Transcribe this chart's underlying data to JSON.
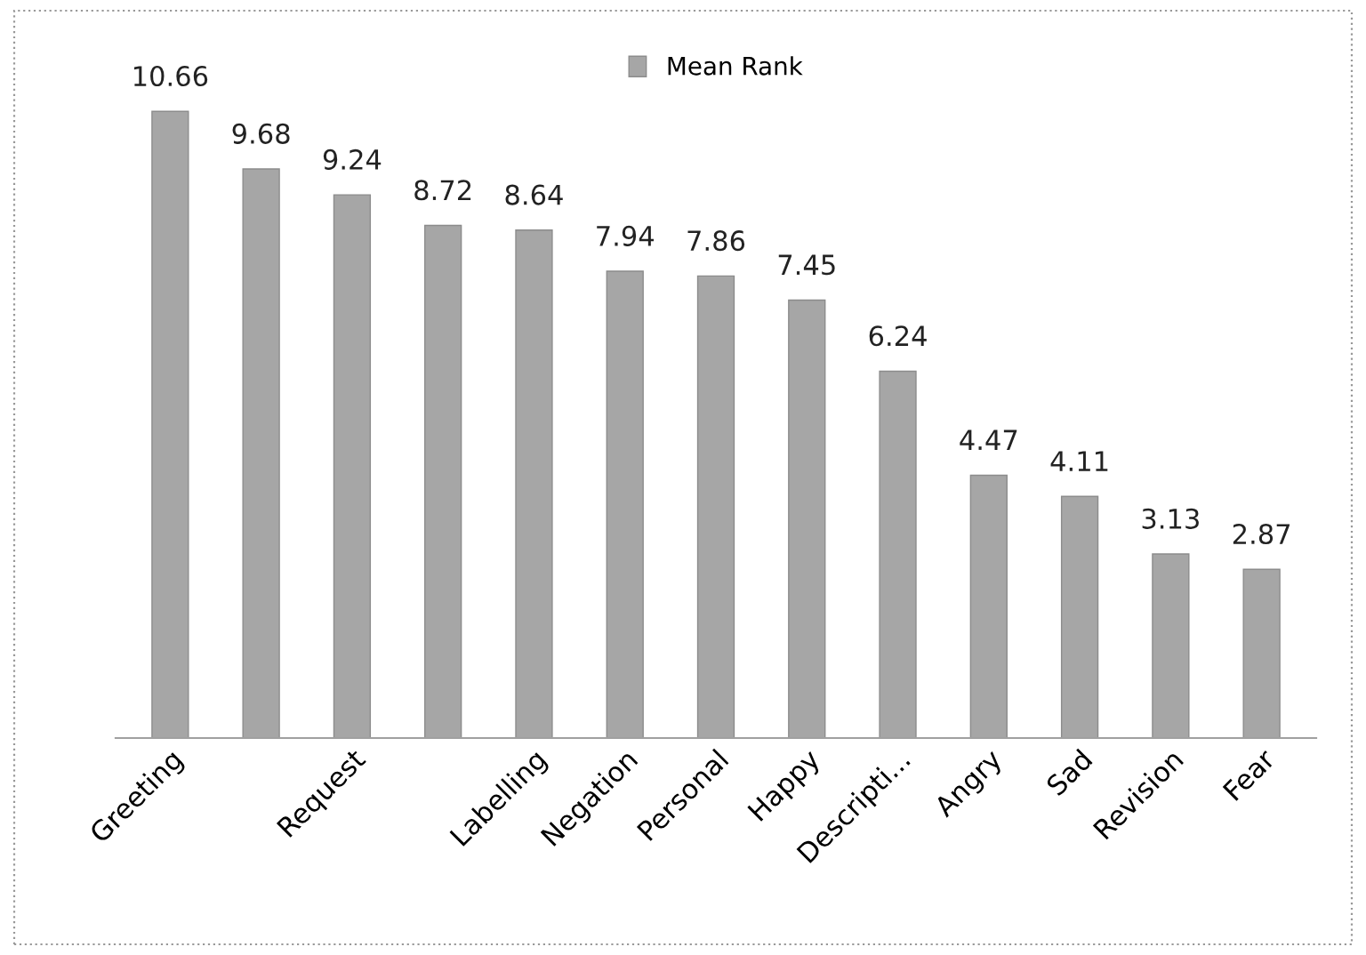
{
  "chart_data": {
    "type": "bar",
    "categories": [
      "Greeting",
      null,
      "Request",
      null,
      "Labelling",
      "Negation",
      "Personal",
      "Happy",
      "Descripti...",
      "Angry",
      "Sad",
      "Revision",
      "Fear"
    ],
    "series": [
      {
        "name": "Mean Rank",
        "color": "#a6a6a6",
        "values": [
          10.66,
          9.68,
          9.24,
          8.72,
          8.64,
          7.94,
          7.86,
          7.45,
          6.24,
          4.47,
          4.11,
          3.13,
          2.87
        ]
      }
    ],
    "data_labels": true,
    "legend": "top",
    "grid": false,
    "tick_labels": "x"
  }
}
